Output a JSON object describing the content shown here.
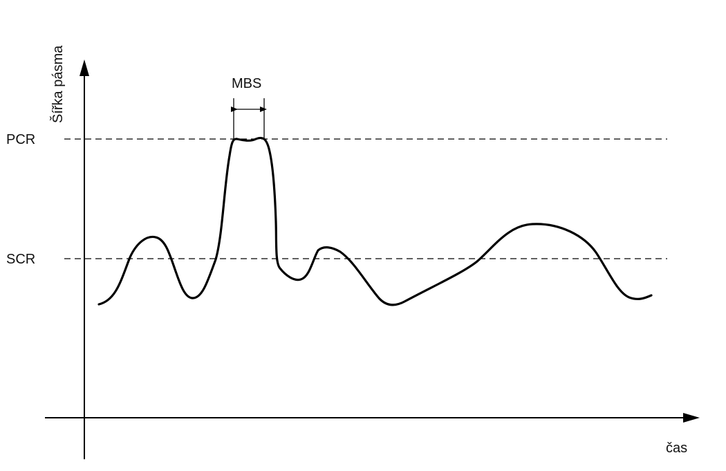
{
  "diagram": {
    "y_axis_label": "Šířka pásma",
    "x_axis_label": "čas",
    "levels": [
      {
        "label": "PCR"
      },
      {
        "label": "SCR"
      }
    ],
    "burst_label": "MBS",
    "colors": {
      "line": "#000000",
      "background": "#ffffff"
    }
  }
}
